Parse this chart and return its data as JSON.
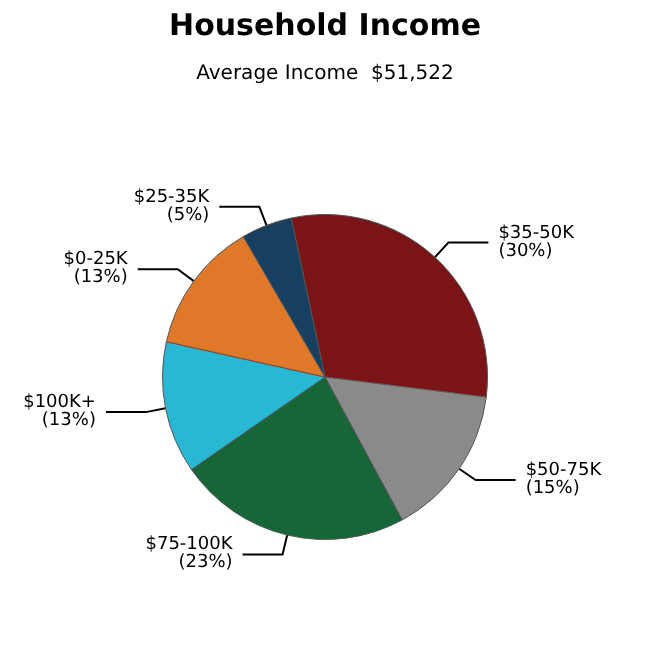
{
  "chart_data": {
    "type": "pie",
    "title": "Household Income",
    "subtitle": "Average Income  $51,522",
    "categories": [
      "$35-50K",
      "$50-75K",
      "$75-100K",
      "$100K+",
      "$0-25K",
      "$25-35K"
    ],
    "values": [
      30,
      15,
      23,
      13,
      13,
      5
    ],
    "value_labels": [
      "(30%)",
      "(15%)",
      "(23%)",
      "(13%)",
      "(13%)",
      "(5%)"
    ],
    "colors": [
      "#7a1416",
      "#8a8a8a",
      "#176638",
      "#28b8d4",
      "#e0782a",
      "#173f60"
    ],
    "legend": false
  }
}
